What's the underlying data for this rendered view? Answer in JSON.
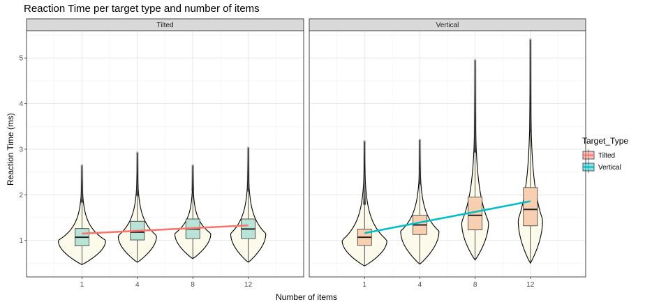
{
  "chart_data": {
    "type": "violin-box",
    "title": "Reaction Time per target type and number of items",
    "xlabel": "Number of items",
    "ylabel": "Reaction Time (ms)",
    "ylim": [
      0.2,
      5.6
    ],
    "yticks": [
      1,
      2,
      3,
      4,
      5
    ],
    "categories": [
      "1",
      "4",
      "8",
      "12"
    ],
    "grid": true,
    "legend": {
      "title": "Target_Type",
      "position": "right",
      "entries": [
        {
          "name": "Tilted",
          "fill": "#F8766D",
          "line": "#F8766D"
        },
        {
          "name": "Vertical",
          "fill": "#00BFC4",
          "line": "#00BFC4"
        }
      ]
    },
    "panels": [
      {
        "strip": "Tilted",
        "box_fill": "#b9e3d6",
        "line_color": "#F8766D",
        "trend": [
          [
            1,
            1.15
          ],
          [
            12,
            1.33
          ]
        ],
        "groups": [
          {
            "x": "1",
            "min": 0.47,
            "q1": 0.88,
            "median": 1.07,
            "q3": 1.26,
            "whisker_high": 1.85,
            "max": 2.64,
            "mode": 1.0,
            "width": 0.58
          },
          {
            "x": "4",
            "min": 0.52,
            "q1": 1.01,
            "median": 1.18,
            "q3": 1.42,
            "whisker_high": 2.0,
            "max": 2.92,
            "mode": 1.1,
            "width": 0.47
          },
          {
            "x": "8",
            "min": 0.6,
            "q1": 1.04,
            "median": 1.25,
            "q3": 1.47,
            "whisker_high": 2.1,
            "max": 2.64,
            "mode": 1.15,
            "width": 0.44
          },
          {
            "x": "12",
            "min": 0.52,
            "q1": 1.04,
            "median": 1.25,
            "q3": 1.47,
            "whisker_high": 2.1,
            "max": 3.03,
            "mode": 1.15,
            "width": 0.43
          }
        ]
      },
      {
        "strip": "Vertical",
        "box_fill": "#f9cfb1",
        "line_color": "#00BFC4",
        "trend": [
          [
            1,
            1.16
          ],
          [
            12,
            1.86
          ]
        ],
        "groups": [
          {
            "x": "1",
            "min": 0.44,
            "q1": 0.89,
            "median": 1.07,
            "q3": 1.25,
            "whisker_high": 1.8,
            "max": 3.17,
            "mode": 1.0,
            "width": 0.55
          },
          {
            "x": "4",
            "min": 0.48,
            "q1": 1.13,
            "median": 1.34,
            "q3": 1.55,
            "whisker_high": 2.25,
            "max": 3.2,
            "mode": 1.2,
            "width": 0.47
          },
          {
            "x": "8",
            "min": 0.57,
            "q1": 1.23,
            "median": 1.55,
            "q3": 1.95,
            "whisker_high": 2.95,
            "max": 4.95,
            "mode": 1.4,
            "width": 0.33
          },
          {
            "x": "12",
            "min": 0.5,
            "q1": 1.32,
            "median": 1.68,
            "q3": 2.16,
            "whisker_high": 3.4,
            "max": 5.4,
            "mode": 1.45,
            "width": 0.3
          }
        ]
      }
    ]
  }
}
